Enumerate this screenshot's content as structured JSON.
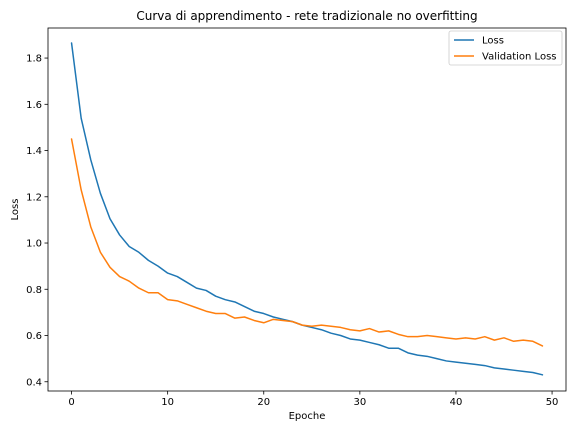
{
  "chart_data": {
    "type": "line",
    "title": "Curva di apprendimento - rete tradizionale no overfitting",
    "xlabel": "Epoche",
    "ylabel": "Loss",
    "xlim": [
      -2.45,
      51.45
    ],
    "ylim": [
      0.36,
      1.93
    ],
    "xticks": [
      0,
      10,
      20,
      30,
      40,
      50
    ],
    "yticks": [
      0.4,
      0.6,
      0.8,
      1.0,
      1.2,
      1.4,
      1.6,
      1.8
    ],
    "grid": false,
    "legend": "top-right",
    "x": [
      0,
      1,
      2,
      3,
      4,
      5,
      6,
      7,
      8,
      9,
      10,
      11,
      12,
      13,
      14,
      15,
      16,
      17,
      18,
      19,
      20,
      21,
      22,
      23,
      24,
      25,
      26,
      27,
      28,
      29,
      30,
      31,
      32,
      33,
      34,
      35,
      36,
      37,
      38,
      39,
      40,
      41,
      42,
      43,
      44,
      45,
      46,
      47,
      48,
      49
    ],
    "series": [
      {
        "name": "Loss",
        "color": "#1f77b4",
        "values": [
          1.865,
          1.54,
          1.36,
          1.215,
          1.105,
          1.035,
          0.985,
          0.96,
          0.925,
          0.9,
          0.87,
          0.855,
          0.83,
          0.805,
          0.795,
          0.77,
          0.755,
          0.745,
          0.725,
          0.705,
          0.695,
          0.68,
          0.67,
          0.66,
          0.645,
          0.635,
          0.625,
          0.61,
          0.6,
          0.585,
          0.58,
          0.57,
          0.56,
          0.545,
          0.545,
          0.525,
          0.515,
          0.51,
          0.5,
          0.49,
          0.485,
          0.48,
          0.475,
          0.47,
          0.46,
          0.455,
          0.45,
          0.445,
          0.44,
          0.43
        ]
      },
      {
        "name": "Validation Loss",
        "color": "#ff7f0e",
        "values": [
          1.45,
          1.23,
          1.07,
          0.96,
          0.895,
          0.855,
          0.835,
          0.805,
          0.785,
          0.785,
          0.755,
          0.75,
          0.735,
          0.72,
          0.705,
          0.695,
          0.695,
          0.675,
          0.68,
          0.665,
          0.655,
          0.67,
          0.665,
          0.66,
          0.645,
          0.64,
          0.645,
          0.64,
          0.635,
          0.625,
          0.62,
          0.63,
          0.615,
          0.62,
          0.605,
          0.595,
          0.595,
          0.6,
          0.595,
          0.59,
          0.585,
          0.59,
          0.585,
          0.595,
          0.58,
          0.59,
          0.575,
          0.58,
          0.575,
          0.555
        ]
      }
    ]
  }
}
